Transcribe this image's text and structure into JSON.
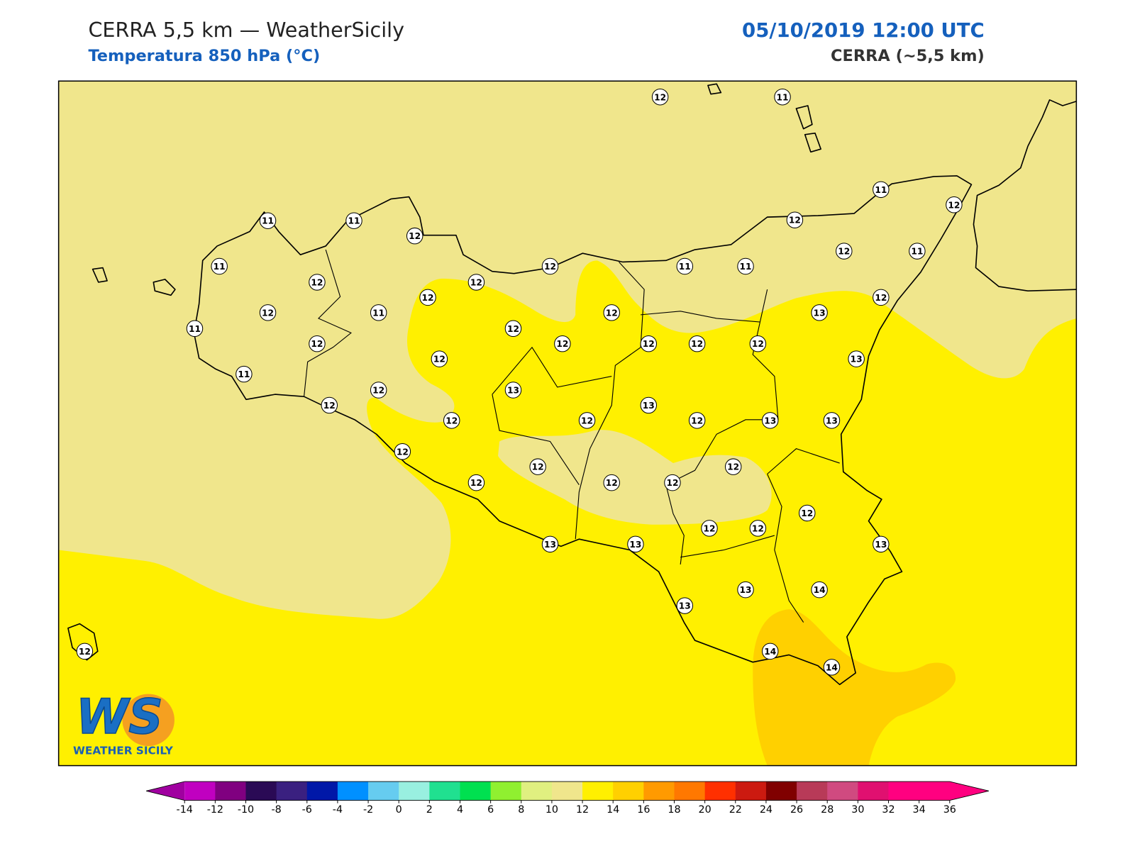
{
  "header": {
    "title": "CERRA 5,5 km — WeatherSicily",
    "subtitle": "Temperatura 850 hPa (°C)",
    "datetime": "05/10/2019 12:00 UTC",
    "model": "CERRA (~5,5 km)"
  },
  "stations": [
    12,
    11,
    11,
    11,
    12,
    11,
    12,
    12,
    11,
    12,
    11,
    11,
    12,
    11,
    12,
    12,
    12,
    12,
    12,
    11,
    12,
    13,
    11,
    12,
    12,
    12,
    12,
    12,
    12,
    12,
    13,
    11,
    12,
    13,
    13,
    12,
    12,
    12,
    12,
    13,
    13,
    12,
    12,
    12,
    12,
    12,
    12,
    12,
    12,
    12,
    13,
    13,
    13,
    13,
    14,
    13,
    14,
    14,
    12
  ],
  "colorbar": {
    "levels": [
      -14,
      -12,
      -10,
      -8,
      -6,
      -4,
      -2,
      0,
      2,
      4,
      6,
      8,
      10,
      12,
      14,
      16,
      18,
      20,
      22,
      24,
      26,
      28,
      30,
      32,
      34,
      36
    ],
    "colors": [
      "#c000c0",
      "#800080",
      "#2a0a55",
      "#3a2080",
      "#0018a8",
      "#0090ff",
      "#66ccf0",
      "#99f0e0",
      "#20e090",
      "#00e050",
      "#90f030",
      "#e0f080",
      "#f0e68c",
      "#fff000",
      "#ffd000",
      "#ff9a00",
      "#ff7800",
      "#ff3000",
      "#cc1a10",
      "#800000",
      "#b83a58",
      "#d04a80",
      "#e01070",
      "#ff0080",
      "#ff0080"
    ],
    "under_color": "#a000a0",
    "over_color": "#ff0080"
  },
  "logo": {
    "initials": "WS",
    "name": "WEATHER SICILY"
  }
}
